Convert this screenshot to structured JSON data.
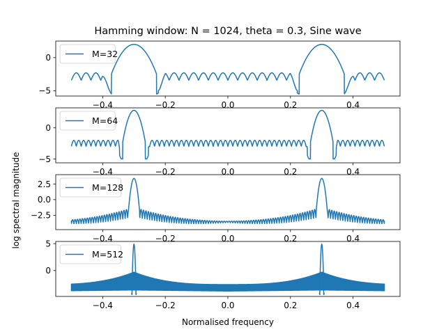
{
  "chart_data": {
    "type": "line",
    "title": "Hamming window: N = 1024, theta = 0.3, Sine wave",
    "xlabel": "Normalised frequency",
    "ylabel": "log spectral magnitude",
    "line_color": "#1f77b4",
    "legend_position": "upper-left",
    "grid": false,
    "subplots": [
      {
        "series": [
          {
            "name": "M=32"
          }
        ],
        "xlim": [
          -0.55,
          0.55
        ],
        "ylim": [
          -5.8,
          2.5
        ],
        "xticks": [
          -0.4,
          -0.2,
          0.0,
          0.2,
          0.4
        ],
        "xtick_labels": [
          "−0.4",
          "−0.2",
          "0.0",
          "0.2",
          "0.4"
        ],
        "yticks": [
          0,
          -5
        ],
        "ytick_labels": [
          "0",
          "−5"
        ],
        "peaks": [
          -0.3,
          0.3
        ],
        "peak_value": 2.0,
        "mainlobe_halfwidth": 0.072,
        "sidelobe_mean": -3.0,
        "sidelobe_amplitude": 0.7,
        "sidelobe_cycles": 32,
        "deep_nulls": [
          -0.228,
          0.228
        ],
        "null_depth": -5.5
      },
      {
        "series": [
          {
            "name": "M=64"
          }
        ],
        "xlim": [
          -0.55,
          0.55
        ],
        "ylim": [
          -5.6,
          3.2
        ],
        "xticks": [
          -0.4,
          -0.2,
          0.0,
          0.2,
          0.4
        ],
        "xtick_labels": [
          "−0.4",
          "−0.2",
          "0.0",
          "0.2",
          "0.4"
        ],
        "yticks": [
          0,
          -5
        ],
        "ytick_labels": [
          "0",
          "−5"
        ],
        "peaks": [
          -0.3,
          0.3
        ],
        "peak_value": 2.8,
        "mainlobe_halfwidth": 0.036,
        "sidelobe_mean": -2.6,
        "sidelobe_amplitude": 0.6,
        "sidelobe_cycles": 64,
        "deep_nulls": [
          -0.34,
          -0.26,
          0.26,
          0.34
        ],
        "null_depth": -5.0
      },
      {
        "series": [
          {
            "name": "M=128"
          }
        ],
        "xlim": [
          -0.55,
          0.55
        ],
        "ylim": [
          -4.8,
          4.0
        ],
        "xticks": [
          -0.4,
          -0.2,
          0.0,
          0.2,
          0.4
        ],
        "xtick_labels": [
          "−0.4",
          "−0.2",
          "0.0",
          "0.2",
          "0.4"
        ],
        "yticks": [
          2.5,
          0.0,
          -2.5
        ],
        "ytick_labels": [
          "2.5",
          "0.0",
          "−2.5"
        ],
        "peaks": [
          -0.3,
          0.3
        ],
        "peak_value": 3.4,
        "mainlobe_halfwidth": 0.018,
        "sidelobe_mean": -2.5,
        "sidelobe_amplitude": 1.1,
        "sidelobe_cycles": 128,
        "center_value": -3.5,
        "near_peak_value": -1.5,
        "null_depth": -4.3
      },
      {
        "series": [
          {
            "name": "M=512"
          }
        ],
        "xlim": [
          -0.55,
          0.55
        ],
        "ylim": [
          -4.8,
          5.4
        ],
        "xticks": [
          -0.4,
          -0.2,
          0.0,
          0.2,
          0.4
        ],
        "xtick_labels": [
          "−0.4",
          "−0.2",
          "0.0",
          "0.2",
          "0.4"
        ],
        "yticks": [
          5,
          0
        ],
        "ytick_labels": [
          "5",
          "0"
        ],
        "peaks": [
          -0.3,
          0.3
        ],
        "peak_value": 4.9,
        "mainlobe_halfwidth": 0.006,
        "band_upper_center": -2.9,
        "band_lower_center": -4.1,
        "band_upper_edge": -2.6,
        "band_lower_edge": -3.6,
        "near_peak_value": -0.3,
        "null_depth": -4.6
      }
    ]
  }
}
